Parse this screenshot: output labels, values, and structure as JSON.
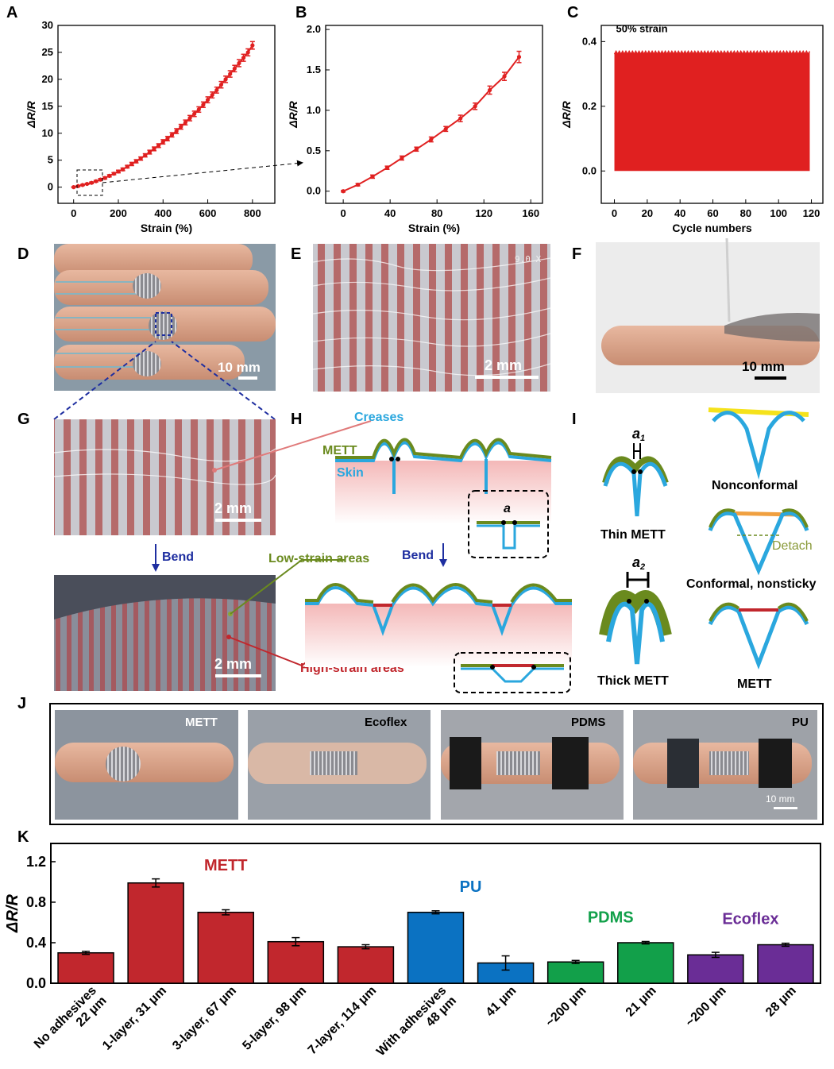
{
  "panel_letters": {
    "a": "A",
    "b": "B",
    "c": "C",
    "d": "D",
    "e": "E",
    "f": "F",
    "g": "G",
    "h": "H",
    "i": "I",
    "j": "J",
    "k": "K"
  },
  "colors": {
    "red": "#e02020",
    "mett_red": "#c1272d",
    "pu_blue": "#0b72c2",
    "pdms_green": "#12a04a",
    "ecoflex_purple": "#6a2d96",
    "skin_blue": "#2aa7de",
    "mett_green": "#6a8a1e",
    "crease_line": "#e07a7a",
    "bend_arrow": "#1e2ea0"
  },
  "chart_data": [
    {
      "id": "A",
      "type": "line",
      "xlabel": "Strain (%)",
      "ylabel": "ΔR/R",
      "xlim": [
        -70,
        900
      ],
      "ylim": [
        -3,
        30
      ],
      "xticks": [
        0,
        200,
        400,
        600,
        800
      ],
      "yticks": [
        0,
        5,
        10,
        15,
        20,
        25,
        30
      ],
      "series": [
        {
          "x": [
            0,
            20,
            40,
            60,
            80,
            100,
            120,
            140,
            160,
            180,
            200,
            220,
            240,
            260,
            280,
            300,
            320,
            340,
            360,
            380,
            400,
            420,
            440,
            460,
            480,
            500,
            520,
            540,
            560,
            580,
            600,
            620,
            640,
            660,
            680,
            700,
            720,
            740,
            760,
            780,
            800
          ],
          "y": [
            0,
            0.2,
            0.4,
            0.6,
            0.8,
            1.1,
            1.4,
            1.7,
            2.1,
            2.5,
            2.9,
            3.3,
            3.8,
            4.3,
            4.8,
            5.3,
            5.9,
            6.5,
            7.1,
            7.7,
            8.4,
            9.0,
            9.7,
            10.4,
            11.2,
            12.0,
            12.8,
            13.6,
            14.4,
            15.3,
            16.2,
            17.1,
            18.0,
            19.0,
            20.0,
            21.0,
            22.0,
            23.0,
            24.0,
            25.0,
            26.3
          ],
          "err": [
            0.05,
            0.1,
            0.1,
            0.1,
            0.15,
            0.15,
            0.2,
            0.2,
            0.2,
            0.2,
            0.25,
            0.25,
            0.25,
            0.3,
            0.3,
            0.3,
            0.3,
            0.35,
            0.35,
            0.35,
            0.4,
            0.4,
            0.4,
            0.45,
            0.45,
            0.45,
            0.5,
            0.5,
            0.5,
            0.5,
            0.55,
            0.55,
            0.55,
            0.6,
            0.6,
            0.6,
            0.6,
            0.65,
            0.65,
            0.65,
            0.7
          ]
        }
      ]
    },
    {
      "id": "B",
      "type": "line",
      "xlabel": "Strain (%)",
      "ylabel": "ΔR/R",
      "xlim": [
        -15,
        170
      ],
      "ylim": [
        -0.15,
        2.05
      ],
      "xticks": [
        0,
        40,
        80,
        120,
        160
      ],
      "yticks": [
        0.0,
        0.5,
        1.0,
        1.5,
        2.0
      ],
      "series": [
        {
          "x": [
            0,
            12.5,
            25,
            37.5,
            50,
            62.5,
            75,
            87.5,
            100,
            112.5,
            125,
            137.5,
            150
          ],
          "y": [
            0,
            0.08,
            0.18,
            0.29,
            0.41,
            0.52,
            0.64,
            0.77,
            0.9,
            1.05,
            1.25,
            1.42,
            1.66
          ],
          "err": [
            0.01,
            0.015,
            0.02,
            0.02,
            0.025,
            0.025,
            0.03,
            0.03,
            0.04,
            0.04,
            0.05,
            0.05,
            0.07
          ]
        }
      ]
    },
    {
      "id": "C",
      "type": "area",
      "xlabel": "Cycle numbers",
      "ylabel": "ΔR/R",
      "annotation": "50% strain",
      "xlim": [
        -8,
        127
      ],
      "ylim": [
        -0.1,
        0.45
      ],
      "xticks": [
        0,
        20,
        40,
        60,
        80,
        100,
        120
      ],
      "yticks": [
        0.0,
        0.2,
        0.4
      ],
      "cycles": 119,
      "min": 0.0,
      "max": 0.365
    },
    {
      "id": "K",
      "type": "bar",
      "ylabel": "ΔR/R",
      "ylim": [
        0,
        1.38
      ],
      "yticks": [
        0.0,
        0.4,
        0.8,
        1.2
      ],
      "categories": [
        [
          "No adhesives",
          "22 μm"
        ],
        [
          "1-layer, 31 μm"
        ],
        [
          "3-layer, 67 μm"
        ],
        [
          "5-layer, 98 μm"
        ],
        [
          "7-layer, 114 μm"
        ],
        [
          "With adhesives",
          "48 μm"
        ],
        [
          "41 μm"
        ],
        [
          "~200 μm"
        ],
        [
          "21 μm"
        ],
        [
          "~200 μm"
        ],
        [
          "28 μm"
        ]
      ],
      "values": [
        0.3,
        0.99,
        0.7,
        0.41,
        0.36,
        0.7,
        0.2,
        0.21,
        0.4,
        0.28,
        0.38
      ],
      "errors": [
        0.015,
        0.04,
        0.025,
        0.04,
        0.02,
        0.015,
        0.07,
        0.015,
        0.012,
        0.025,
        0.015
      ],
      "groups": [
        "METT",
        "METT",
        "METT",
        "METT",
        "METT",
        "PU",
        "PU",
        "PDMS",
        "PDMS",
        "Ecoflex",
        "Ecoflex"
      ],
      "group_labels": [
        {
          "name": "METT"
        },
        {
          "name": "PU"
        },
        {
          "name": "PDMS"
        },
        {
          "name": "Ecoflex"
        }
      ]
    }
  ],
  "photos": {
    "d_scale": "10 mm",
    "e_scale": "2 mm",
    "e_mag": "9.0 X",
    "f_scale": "10 mm",
    "g_scale_top": "2 mm",
    "g_scale_bottom": "2 mm",
    "bend": "Bend",
    "low_strain": "Low-strain areas",
    "high_strain": "High-strain areas"
  },
  "schematic_h": {
    "creases": "Creases",
    "mett": "METT",
    "skin": "Skin",
    "a": "a",
    "bend": "Bend"
  },
  "schematic_i": {
    "a1": "a",
    "a1_sub": "1",
    "a2": "a",
    "a2_sub": "2",
    "thin": "Thin METT",
    "thick": "Thick METT",
    "nonconformal": "Nonconformal",
    "conformal": "Conformal, nonsticky",
    "detach": "Detach",
    "mett": "METT"
  },
  "panel_j": {
    "labels": [
      "METT",
      "Ecoflex",
      "PDMS",
      "PU"
    ],
    "scale": "10 mm"
  }
}
